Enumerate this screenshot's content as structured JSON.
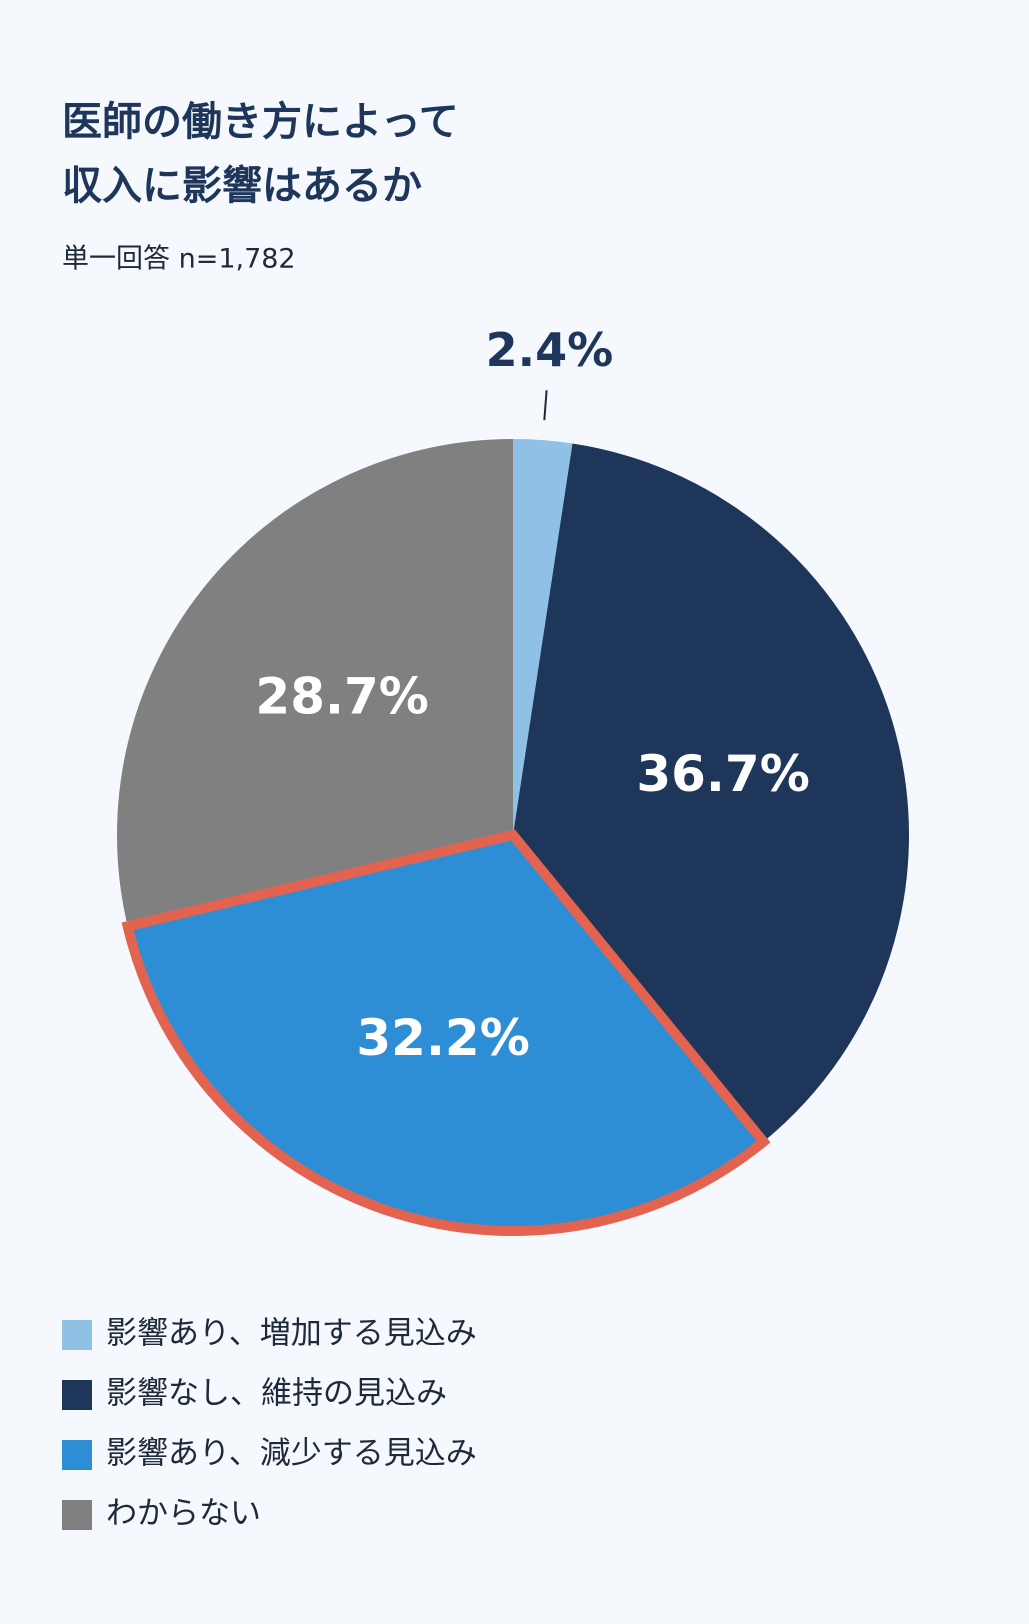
{
  "chart_data": {
    "type": "pie",
    "title": [
      "医師の働き方によって",
      "収入に影響はあるか"
    ],
    "subtitle": "単一回答  n=1,782",
    "categories": [
      "影響あり、増加する見込み",
      "影響なし、維持の見込み",
      "影響あり、減少する見込み",
      "わからない"
    ],
    "values": [
      2.4,
      36.7,
      32.2,
      28.7
    ],
    "value_labels": [
      "2.4%",
      "36.7%",
      "32.2%",
      "28.7%"
    ],
    "colors": [
      "#8fc1e6",
      "#1d3659",
      "#2d8ed6",
      "#808080"
    ],
    "highlight": 2,
    "highlight_color": "#e2634f",
    "legend": "bottom-left"
  }
}
